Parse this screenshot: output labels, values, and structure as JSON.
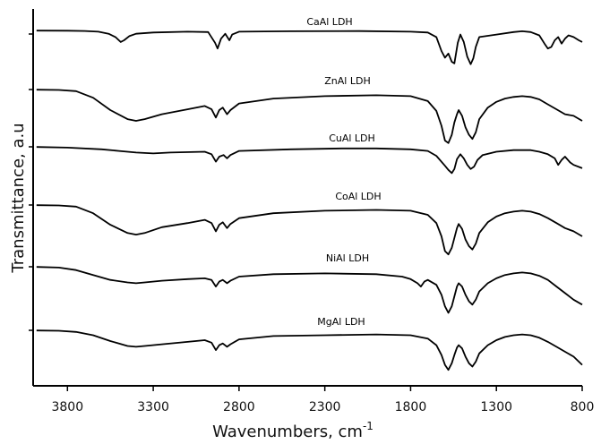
{
  "chart_data": {
    "type": "line",
    "title": "",
    "xlabel": "Wavenumbers, cm",
    "xlabel_superscript": "-1",
    "ylabel": "Transmittance, a.u",
    "xlim": [
      4000,
      800
    ],
    "x_ticks": [
      3800,
      3300,
      2800,
      2300,
      1800,
      1300,
      800
    ],
    "x_tick_labels": [
      "3800",
      "3300",
      "2800",
      "2300",
      "1800",
      "1300",
      "800"
    ],
    "y_ticks_drawn": 6,
    "line_color": "#000000",
    "series": [
      {
        "name": "CaAl LDH",
        "offset": 5,
        "points": [
          [
            3980,
            0.2
          ],
          [
            3800,
            0.3
          ],
          [
            3700,
            0.6
          ],
          [
            3620,
            1.5
          ],
          [
            3560,
            4
          ],
          [
            3520,
            8
          ],
          [
            3490,
            14
          ],
          [
            3470,
            12
          ],
          [
            3440,
            7
          ],
          [
            3400,
            4
          ],
          [
            3300,
            2.5
          ],
          [
            3100,
            1.5
          ],
          [
            2980,
            2
          ],
          [
            2940,
            15
          ],
          [
            2925,
            22
          ],
          [
            2905,
            10
          ],
          [
            2880,
            4
          ],
          [
            2856,
            12
          ],
          [
            2840,
            5
          ],
          [
            2800,
            1.5
          ],
          [
            2500,
            1
          ],
          [
            2100,
            0.8
          ],
          [
            1800,
            1.5
          ],
          [
            1700,
            2.5
          ],
          [
            1650,
            8
          ],
          [
            1620,
            25
          ],
          [
            1600,
            33
          ],
          [
            1580,
            28
          ],
          [
            1560,
            38
          ],
          [
            1545,
            40
          ],
          [
            1525,
            15
          ],
          [
            1510,
            5
          ],
          [
            1490,
            14
          ],
          [
            1470,
            32
          ],
          [
            1450,
            41
          ],
          [
            1435,
            34
          ],
          [
            1420,
            20
          ],
          [
            1400,
            8
          ],
          [
            1300,
            5
          ],
          [
            1200,
            2
          ],
          [
            1150,
            1
          ],
          [
            1100,
            2
          ],
          [
            1050,
            6
          ],
          [
            1020,
            16
          ],
          [
            1000,
            22
          ],
          [
            980,
            20
          ],
          [
            960,
            12
          ],
          [
            940,
            8
          ],
          [
            920,
            16
          ],
          [
            900,
            10
          ],
          [
            880,
            6
          ],
          [
            850,
            8
          ],
          [
            820,
            12
          ],
          [
            800,
            14
          ]
        ]
      },
      {
        "name": "ZnAl LDH",
        "offset": 4,
        "points": [
          [
            3980,
            0.2
          ],
          [
            3850,
            0.5
          ],
          [
            3750,
            2
          ],
          [
            3650,
            10
          ],
          [
            3550,
            25
          ],
          [
            3450,
            36
          ],
          [
            3400,
            38
          ],
          [
            3350,
            36
          ],
          [
            3250,
            30
          ],
          [
            3100,
            24
          ],
          [
            3000,
            20
          ],
          [
            2960,
            24
          ],
          [
            2935,
            34
          ],
          [
            2915,
            25
          ],
          [
            2895,
            22
          ],
          [
            2870,
            30
          ],
          [
            2850,
            25
          ],
          [
            2800,
            17
          ],
          [
            2600,
            11
          ],
          [
            2300,
            8
          ],
          [
            2000,
            7
          ],
          [
            1800,
            8
          ],
          [
            1700,
            14
          ],
          [
            1650,
            26
          ],
          [
            1620,
            44
          ],
          [
            1600,
            62
          ],
          [
            1580,
            65
          ],
          [
            1560,
            55
          ],
          [
            1545,
            40
          ],
          [
            1530,
            30
          ],
          [
            1520,
            25
          ],
          [
            1500,
            32
          ],
          [
            1480,
            46
          ],
          [
            1460,
            55
          ],
          [
            1440,
            60
          ],
          [
            1420,
            52
          ],
          [
            1400,
            36
          ],
          [
            1350,
            22
          ],
          [
            1300,
            15
          ],
          [
            1250,
            11
          ],
          [
            1200,
            9
          ],
          [
            1150,
            8
          ],
          [
            1100,
            9
          ],
          [
            1050,
            12
          ],
          [
            1000,
            18
          ],
          [
            950,
            24
          ],
          [
            900,
            30
          ],
          [
            850,
            32
          ],
          [
            800,
            38
          ]
        ]
      },
      {
        "name": "CuAl LDH",
        "offset": 3,
        "points": [
          [
            3980,
            0.2
          ],
          [
            3800,
            1
          ],
          [
            3600,
            3
          ],
          [
            3500,
            5
          ],
          [
            3400,
            7
          ],
          [
            3300,
            8
          ],
          [
            3200,
            7
          ],
          [
            3000,
            6
          ],
          [
            2960,
            9
          ],
          [
            2935,
            18
          ],
          [
            2915,
            12
          ],
          [
            2890,
            10
          ],
          [
            2870,
            14
          ],
          [
            2850,
            10
          ],
          [
            2800,
            5
          ],
          [
            2500,
            3
          ],
          [
            2200,
            2
          ],
          [
            2000,
            2
          ],
          [
            1800,
            3
          ],
          [
            1700,
            5
          ],
          [
            1650,
            11
          ],
          [
            1600,
            23
          ],
          [
            1580,
            28
          ],
          [
            1560,
            32
          ],
          [
            1545,
            27
          ],
          [
            1530,
            15
          ],
          [
            1510,
            9
          ],
          [
            1490,
            14
          ],
          [
            1470,
            22
          ],
          [
            1450,
            27
          ],
          [
            1430,
            24
          ],
          [
            1410,
            16
          ],
          [
            1380,
            10
          ],
          [
            1300,
            6
          ],
          [
            1200,
            4
          ],
          [
            1100,
            4
          ],
          [
            1050,
            6
          ],
          [
            1000,
            9
          ],
          [
            960,
            14
          ],
          [
            940,
            22
          ],
          [
            920,
            16
          ],
          [
            900,
            12
          ],
          [
            870,
            19
          ],
          [
            850,
            22
          ],
          [
            800,
            26
          ]
        ]
      },
      {
        "name": "CoAl LDH",
        "offset": 2,
        "points": [
          [
            3980,
            0.2
          ],
          [
            3850,
            0.5
          ],
          [
            3750,
            2
          ],
          [
            3650,
            10
          ],
          [
            3550,
            24
          ],
          [
            3450,
            34
          ],
          [
            3400,
            36
          ],
          [
            3350,
            34
          ],
          [
            3250,
            27
          ],
          [
            3100,
            22
          ],
          [
            3000,
            18
          ],
          [
            2960,
            22
          ],
          [
            2935,
            32
          ],
          [
            2915,
            24
          ],
          [
            2895,
            21
          ],
          [
            2870,
            28
          ],
          [
            2850,
            23
          ],
          [
            2800,
            16
          ],
          [
            2600,
            10
          ],
          [
            2300,
            7
          ],
          [
            2000,
            6
          ],
          [
            1800,
            7
          ],
          [
            1700,
            12
          ],
          [
            1650,
            22
          ],
          [
            1620,
            38
          ],
          [
            1600,
            56
          ],
          [
            1580,
            60
          ],
          [
            1560,
            52
          ],
          [
            1545,
            40
          ],
          [
            1530,
            28
          ],
          [
            1520,
            23
          ],
          [
            1500,
            29
          ],
          [
            1480,
            42
          ],
          [
            1460,
            50
          ],
          [
            1440,
            54
          ],
          [
            1420,
            47
          ],
          [
            1400,
            34
          ],
          [
            1350,
            21
          ],
          [
            1300,
            14
          ],
          [
            1250,
            10
          ],
          [
            1200,
            8
          ],
          [
            1150,
            7
          ],
          [
            1100,
            8
          ],
          [
            1050,
            11
          ],
          [
            1000,
            16
          ],
          [
            950,
            22
          ],
          [
            900,
            28
          ],
          [
            850,
            32
          ],
          [
            800,
            38
          ]
        ]
      },
      {
        "name": "NiAl LDH",
        "offset": 1,
        "points": [
          [
            3980,
            0.2
          ],
          [
            3850,
            1
          ],
          [
            3750,
            4
          ],
          [
            3650,
            10
          ],
          [
            3550,
            16
          ],
          [
            3450,
            19
          ],
          [
            3400,
            20
          ],
          [
            3350,
            19
          ],
          [
            3250,
            17
          ],
          [
            3100,
            15
          ],
          [
            3000,
            14
          ],
          [
            2960,
            16
          ],
          [
            2935,
            24
          ],
          [
            2915,
            18
          ],
          [
            2895,
            16
          ],
          [
            2870,
            20
          ],
          [
            2850,
            17
          ],
          [
            2800,
            12
          ],
          [
            2600,
            9
          ],
          [
            2300,
            8
          ],
          [
            2000,
            9
          ],
          [
            1850,
            12
          ],
          [
            1800,
            15
          ],
          [
            1760,
            20
          ],
          [
            1740,
            24
          ],
          [
            1720,
            18
          ],
          [
            1700,
            16
          ],
          [
            1650,
            22
          ],
          [
            1620,
            34
          ],
          [
            1600,
            48
          ],
          [
            1580,
            56
          ],
          [
            1560,
            48
          ],
          [
            1545,
            36
          ],
          [
            1530,
            24
          ],
          [
            1520,
            20
          ],
          [
            1500,
            24
          ],
          [
            1480,
            34
          ],
          [
            1460,
            42
          ],
          [
            1440,
            46
          ],
          [
            1420,
            40
          ],
          [
            1400,
            30
          ],
          [
            1350,
            20
          ],
          [
            1300,
            14
          ],
          [
            1250,
            10
          ],
          [
            1200,
            8
          ],
          [
            1150,
            7
          ],
          [
            1100,
            8
          ],
          [
            1050,
            11
          ],
          [
            1000,
            16
          ],
          [
            950,
            24
          ],
          [
            900,
            32
          ],
          [
            850,
            40
          ],
          [
            800,
            46
          ]
        ]
      },
      {
        "name": "MgAl LDH",
        "offset": 0,
        "points": [
          [
            3980,
            0.2
          ],
          [
            3850,
            0.5
          ],
          [
            3750,
            2
          ],
          [
            3650,
            6
          ],
          [
            3550,
            13
          ],
          [
            3450,
            19
          ],
          [
            3400,
            20
          ],
          [
            3350,
            19
          ],
          [
            3250,
            17
          ],
          [
            3100,
            14
          ],
          [
            3000,
            12
          ],
          [
            2960,
            15
          ],
          [
            2935,
            24
          ],
          [
            2915,
            18
          ],
          [
            2895,
            16
          ],
          [
            2870,
            20
          ],
          [
            2850,
            17
          ],
          [
            2800,
            11
          ],
          [
            2600,
            7
          ],
          [
            2300,
            6
          ],
          [
            2000,
            5
          ],
          [
            1800,
            6
          ],
          [
            1700,
            10
          ],
          [
            1650,
            18
          ],
          [
            1620,
            30
          ],
          [
            1600,
            42
          ],
          [
            1580,
            48
          ],
          [
            1560,
            40
          ],
          [
            1545,
            30
          ],
          [
            1530,
            21
          ],
          [
            1520,
            18
          ],
          [
            1500,
            22
          ],
          [
            1480,
            32
          ],
          [
            1460,
            40
          ],
          [
            1440,
            44
          ],
          [
            1420,
            38
          ],
          [
            1400,
            28
          ],
          [
            1350,
            18
          ],
          [
            1300,
            12
          ],
          [
            1250,
            8
          ],
          [
            1200,
            6
          ],
          [
            1150,
            5
          ],
          [
            1100,
            6
          ],
          [
            1050,
            9
          ],
          [
            1000,
            14
          ],
          [
            950,
            20
          ],
          [
            900,
            26
          ],
          [
            850,
            32
          ],
          [
            800,
            42
          ]
        ]
      }
    ]
  }
}
